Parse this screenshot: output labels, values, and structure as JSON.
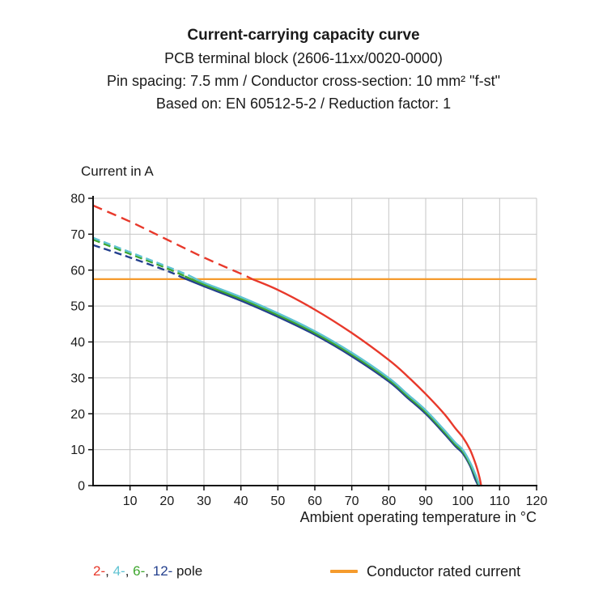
{
  "header": {
    "line1": "Current-carrying capacity curve",
    "line2": "PCB terminal block (2606-11xx/0020-0000)",
    "line3": "Pin spacing: 7.5 mm / Conductor cross-section: 10 mm² \"f-st\"",
    "line4": "Based on: EN 60512-5-2 / Reduction factor: 1"
  },
  "chart_data": {
    "type": "line",
    "title": "Current-carrying capacity curve",
    "ylabel": "Current in A",
    "xlabel": "Ambient operating temperature in °C",
    "xlim": [
      0,
      120
    ],
    "ylim": [
      0,
      80
    ],
    "xticks": [
      10,
      20,
      30,
      40,
      50,
      60,
      70,
      80,
      90,
      100,
      110,
      120
    ],
    "yticks": [
      0,
      10,
      20,
      30,
      40,
      50,
      60,
      70,
      80
    ],
    "grid": true,
    "grid_color": "#c6c6c6",
    "axis_color": "#111111",
    "rated_current": {
      "label": "Conductor rated current",
      "value": 57.5,
      "color": "#f59b2d"
    },
    "series": [
      {
        "name": "2-pole",
        "color": "#e8392b",
        "dash_until_x": 43,
        "points": [
          [
            0,
            78
          ],
          [
            10,
            73.5
          ],
          [
            20,
            68.5
          ],
          [
            30,
            63.5
          ],
          [
            40,
            59
          ],
          [
            43,
            57.5
          ],
          [
            50,
            54.5
          ],
          [
            60,
            49
          ],
          [
            70,
            42.5
          ],
          [
            80,
            35
          ],
          [
            85,
            30.5
          ],
          [
            90,
            25.5
          ],
          [
            95,
            20
          ],
          [
            98,
            16
          ],
          [
            100,
            13.5
          ],
          [
            102,
            10
          ],
          [
            103.5,
            6
          ],
          [
            104.5,
            2.5
          ],
          [
            105,
            0
          ]
        ]
      },
      {
        "name": "4-pole",
        "color": "#5fc3d2",
        "dash_until_x": 26,
        "points": [
          [
            0,
            69
          ],
          [
            10,
            65
          ],
          [
            20,
            61
          ],
          [
            26,
            58.5
          ],
          [
            30,
            56.5
          ],
          [
            40,
            52.5
          ],
          [
            50,
            48
          ],
          [
            60,
            43
          ],
          [
            70,
            37
          ],
          [
            80,
            30
          ],
          [
            85,
            25.5
          ],
          [
            90,
            21
          ],
          [
            95,
            15.5
          ],
          [
            98,
            12
          ],
          [
            100,
            10
          ],
          [
            102,
            6.5
          ],
          [
            103.5,
            3
          ],
          [
            104.6,
            0
          ]
        ]
      },
      {
        "name": "6-pole",
        "color": "#3fa72f",
        "dash_until_x": 25,
        "points": [
          [
            0,
            68.5
          ],
          [
            10,
            64.5
          ],
          [
            20,
            60.5
          ],
          [
            25,
            58.2
          ],
          [
            30,
            56
          ],
          [
            40,
            52
          ],
          [
            50,
            47.5
          ],
          [
            60,
            42.5
          ],
          [
            70,
            36.5
          ],
          [
            80,
            29.5
          ],
          [
            85,
            25
          ],
          [
            90,
            20.5
          ],
          [
            95,
            15
          ],
          [
            98,
            11.5
          ],
          [
            100,
            9.5
          ],
          [
            102,
            6
          ],
          [
            103.5,
            2.5
          ],
          [
            104.4,
            0
          ]
        ]
      },
      {
        "name": "12-pole",
        "color": "#24408e",
        "dash_until_x": 24,
        "points": [
          [
            0,
            67
          ],
          [
            10,
            63.5
          ],
          [
            20,
            59.8
          ],
          [
            24,
            58
          ],
          [
            30,
            55.5
          ],
          [
            40,
            51.5
          ],
          [
            50,
            47
          ],
          [
            60,
            42
          ],
          [
            70,
            36
          ],
          [
            80,
            29
          ],
          [
            85,
            24.5
          ],
          [
            90,
            20
          ],
          [
            95,
            14.5
          ],
          [
            98,
            11
          ],
          [
            100,
            9
          ],
          [
            102,
            5.5
          ],
          [
            103.3,
            2
          ],
          [
            104.2,
            0
          ]
        ]
      }
    ]
  },
  "legend": {
    "poles": [
      {
        "label": "2-",
        "color": "#e8392b"
      },
      {
        "label": "4-",
        "color": "#5fc3d2"
      },
      {
        "label": "6-",
        "color": "#3fa72f"
      },
      {
        "label": "12-",
        "color": "#24408e"
      }
    ],
    "pole_suffix": "pole",
    "rated_label": "Conductor rated current"
  }
}
